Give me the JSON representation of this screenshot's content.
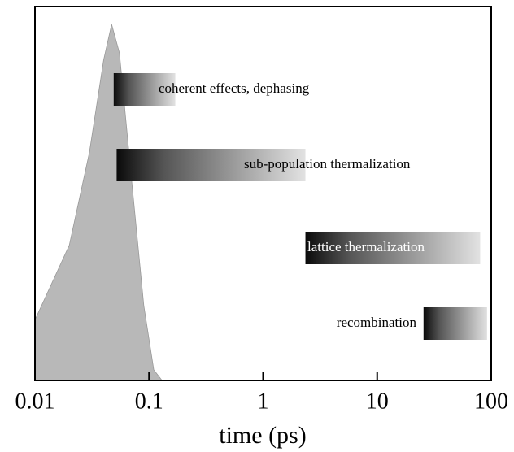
{
  "chart_data": {
    "type": "timeline",
    "xlabel": "time (ps)",
    "xlim": [
      0.01,
      100
    ],
    "xticks": [
      0.01,
      0.1,
      1,
      10,
      100
    ],
    "log_x": true,
    "pulse": {
      "color": "#b8b8b8",
      "x": [
        0.01,
        0.02,
        0.03,
        0.04,
        0.047,
        0.055,
        0.07,
        0.09,
        0.11,
        0.13
      ],
      "values": [
        0.17,
        0.38,
        0.64,
        0.9,
        1.0,
        0.92,
        0.57,
        0.21,
        0.03,
        0
      ]
    },
    "ylim": [
      0,
      1.05
    ],
    "bars": [
      {
        "label": "coherent effects, dephasing",
        "start": 0.049,
        "end": 0.17
      },
      {
        "label": "sub-population thermalization",
        "start": 0.052,
        "end": 2.35
      },
      {
        "label": "lattice thermalization",
        "start": 2.35,
        "end": 80
      },
      {
        "label": "recombination",
        "start": 25.5,
        "end": 92
      }
    ]
  }
}
